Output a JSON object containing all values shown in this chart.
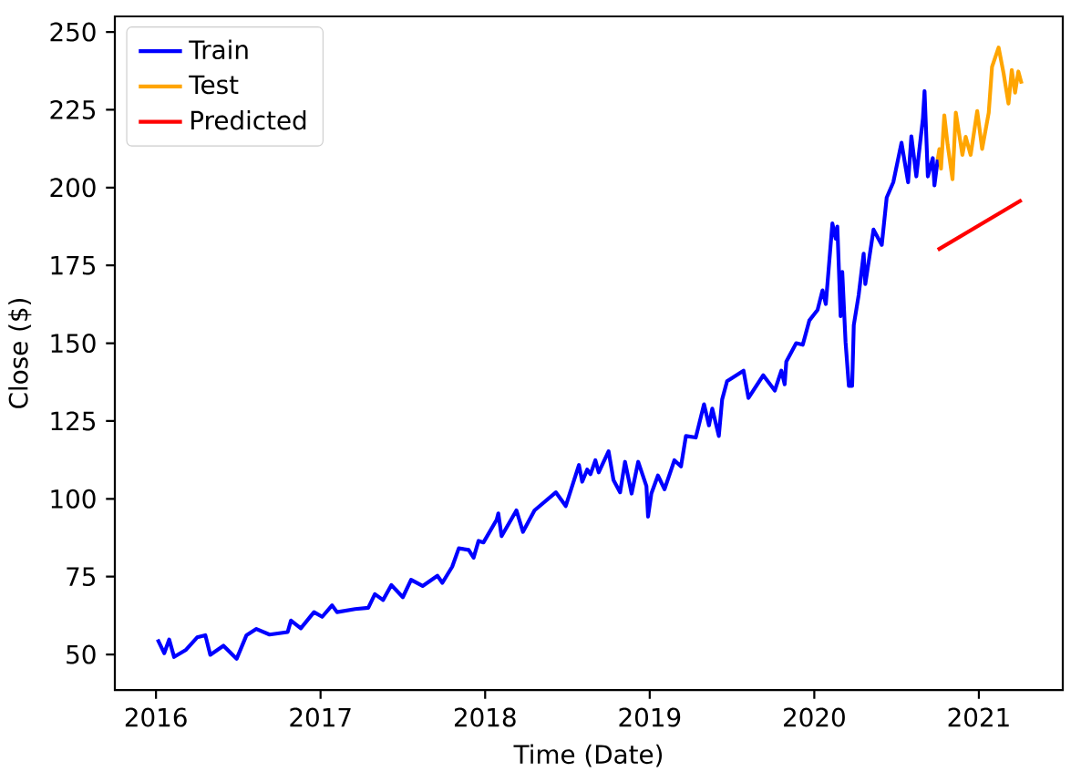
{
  "chart_data": {
    "type": "line",
    "xlabel": "Time (Date)",
    "ylabel": "Close ($)",
    "xlim": [
      2015.75,
      2021.51
    ],
    "ylim": [
      38.6,
      255.0
    ],
    "xticks": [
      2016,
      2017,
      2018,
      2019,
      2020,
      2021
    ],
    "yticks": [
      50,
      75,
      100,
      125,
      150,
      175,
      200,
      225,
      250
    ],
    "grid": false,
    "legend": "top left",
    "marker": "none",
    "line_style": "solid",
    "series": [
      {
        "name": "Train",
        "color": "#0000ff",
        "x": [
          2016.01,
          2016.05,
          2016.08,
          2016.11,
          2016.18,
          2016.25,
          2016.3,
          2016.33,
          2016.41,
          2016.49,
          2016.55,
          2016.61,
          2016.69,
          2016.8,
          2016.82,
          2016.88,
          2016.96,
          2017.01,
          2017.07,
          2017.1,
          2017.21,
          2017.29,
          2017.33,
          2017.38,
          2017.43,
          2017.5,
          2017.55,
          2017.62,
          2017.71,
          2017.74,
          2017.8,
          2017.84,
          2017.9,
          2017.93,
          2017.96,
          2017.99,
          2018.07,
          2018.08,
          2018.1,
          2018.19,
          2018.23,
          2018.3,
          2018.43,
          2018.49,
          2018.57,
          2018.59,
          2018.62,
          2018.64,
          2018.67,
          2018.69,
          2018.75,
          2018.78,
          2018.82,
          2018.85,
          2018.89,
          2018.93,
          2018.98,
          2018.99,
          2019.01,
          2019.05,
          2019.09,
          2019.15,
          2019.19,
          2019.22,
          2019.28,
          2019.33,
          2019.36,
          2019.38,
          2019.42,
          2019.44,
          2019.47,
          2019.57,
          2019.6,
          2019.69,
          2019.76,
          2019.8,
          2019.82,
          2019.83,
          2019.89,
          2019.93,
          2019.97,
          2020.02,
          2020.05,
          2020.07,
          2020.11,
          2020.13,
          2020.14,
          2020.16,
          2020.17,
          2020.19,
          2020.21,
          2020.23,
          2020.24,
          2020.27,
          2020.3,
          2020.31,
          2020.36,
          2020.41,
          2020.44,
          2020.48,
          2020.53,
          2020.57,
          2020.59,
          2020.62,
          2020.66,
          2020.67,
          2020.69,
          2020.72,
          2020.73,
          2020.75
        ],
        "values": [
          54.8,
          50.4,
          54.8,
          49.2,
          51.4,
          55.5,
          56.2,
          49.9,
          52.8,
          48.6,
          56.2,
          58.2,
          56.4,
          57.2,
          60.9,
          58.4,
          63.6,
          62.1,
          65.8,
          63.6,
          64.6,
          65.0,
          69.4,
          67.5,
          72.3,
          68.4,
          74.0,
          72.0,
          75.3,
          73.0,
          78.2,
          84.1,
          83.6,
          81.1,
          86.5,
          86.0,
          93.3,
          95.3,
          88.0,
          96.3,
          89.4,
          96.3,
          102.1,
          97.7,
          110.9,
          105.5,
          109.4,
          107.9,
          112.4,
          108.5,
          115.3,
          106.0,
          102.1,
          111.9,
          101.7,
          111.9,
          104.1,
          94.3,
          101.7,
          107.5,
          103.1,
          112.4,
          110.4,
          120.2,
          119.7,
          130.4,
          123.6,
          129.0,
          120.2,
          131.9,
          137.8,
          141.2,
          132.4,
          139.7,
          134.8,
          141.2,
          136.8,
          144.1,
          150.0,
          149.5,
          157.3,
          160.7,
          167.0,
          162.6,
          188.5,
          183.6,
          187.5,
          158.7,
          172.9,
          150.4,
          136.3,
          136.3,
          155.8,
          165.6,
          178.8,
          169.0,
          186.5,
          181.6,
          196.8,
          201.7,
          214.4,
          201.7,
          216.5,
          203.6,
          222.2,
          231.0,
          203.6,
          209.5,
          200.7,
          209.0
        ]
      },
      {
        "name": "Test",
        "color": "#ffa500",
        "x": [
          2020.75,
          2020.76,
          2020.77,
          2020.79,
          2020.81,
          2020.84,
          2020.86,
          2020.9,
          2020.92,
          2020.95,
          2020.99,
          2021.02,
          2021.06,
          2021.08,
          2021.12,
          2021.15,
          2021.18,
          2021.2,
          2021.22,
          2021.24,
          2021.26
        ],
        "values": [
          209.0,
          212.4,
          206.1,
          223.2,
          213.9,
          202.7,
          224.1,
          210.5,
          216.3,
          210.5,
          224.6,
          212.4,
          224.1,
          238.8,
          245.0,
          236.8,
          227.0,
          237.8,
          230.5,
          237.3,
          233.4
        ]
      },
      {
        "name": "Predicted",
        "color": "#ff0000",
        "x": [
          2020.75,
          2021.26
        ],
        "values": [
          180.0,
          196.0
        ]
      }
    ]
  }
}
